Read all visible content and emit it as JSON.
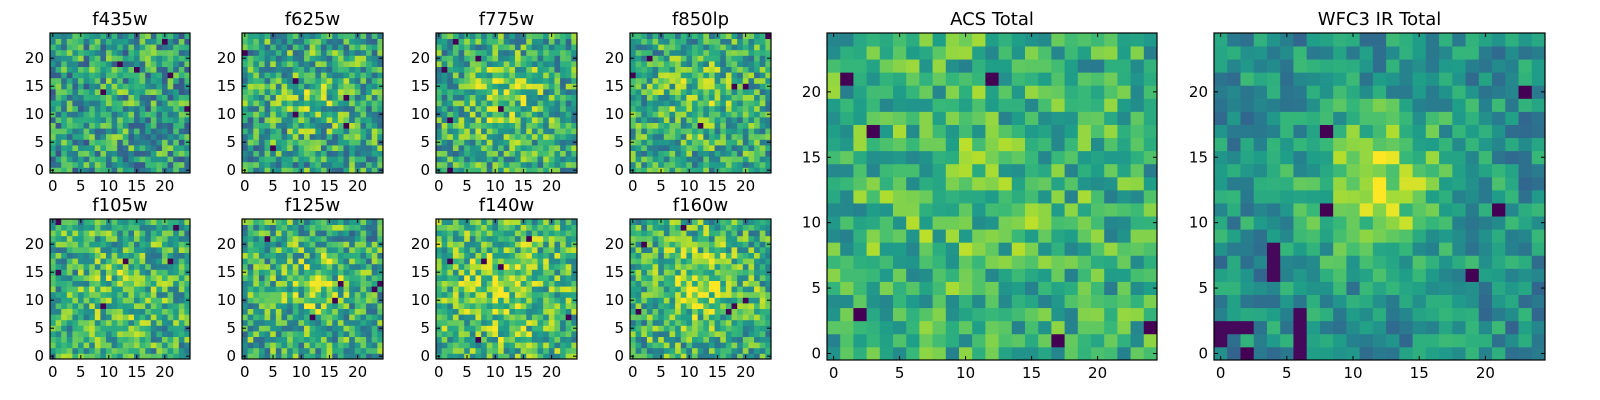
{
  "chart_data": [
    {
      "type": "heatmap",
      "title": "f435w",
      "grid_size": 25,
      "colormap": "viridis",
      "xticks": [
        "0",
        "5",
        "10",
        "15",
        "20"
      ],
      "yticks": [
        "0",
        "5",
        "10",
        "15",
        "20"
      ],
      "xlim": [
        0,
        24
      ],
      "ylim": [
        0,
        24
      ],
      "values": []
    },
    {
      "type": "heatmap",
      "title": "f625w",
      "grid_size": 25,
      "colormap": "viridis",
      "xticks": [
        "0",
        "5",
        "10",
        "15",
        "20"
      ],
      "yticks": [
        "0",
        "5",
        "10",
        "15",
        "20"
      ],
      "xlim": [
        0,
        24
      ],
      "ylim": [
        0,
        24
      ],
      "values": []
    },
    {
      "type": "heatmap",
      "title": "f775w",
      "grid_size": 25,
      "colormap": "viridis",
      "xticks": [
        "0",
        "5",
        "10",
        "15",
        "20"
      ],
      "yticks": [
        "0",
        "5",
        "10",
        "15",
        "20"
      ],
      "xlim": [
        0,
        24
      ],
      "ylim": [
        0,
        24
      ],
      "values": []
    },
    {
      "type": "heatmap",
      "title": "f850lp",
      "grid_size": 25,
      "colormap": "viridis",
      "xticks": [
        "0",
        "5",
        "10",
        "15",
        "20"
      ],
      "yticks": [
        "0",
        "5",
        "10",
        "15",
        "20"
      ],
      "xlim": [
        0,
        24
      ],
      "ylim": [
        0,
        24
      ],
      "values": []
    },
    {
      "type": "heatmap",
      "title": "f105w",
      "grid_size": 25,
      "colormap": "viridis",
      "xticks": [
        "0",
        "5",
        "10",
        "15",
        "20"
      ],
      "yticks": [
        "0",
        "5",
        "10",
        "15",
        "20"
      ],
      "xlim": [
        0,
        24
      ],
      "ylim": [
        0,
        24
      ],
      "values": []
    },
    {
      "type": "heatmap",
      "title": "f125w",
      "grid_size": 25,
      "colormap": "viridis",
      "xticks": [
        "0",
        "5",
        "10",
        "15",
        "20"
      ],
      "yticks": [
        "0",
        "5",
        "10",
        "15",
        "20"
      ],
      "xlim": [
        0,
        24
      ],
      "ylim": [
        0,
        24
      ],
      "values": []
    },
    {
      "type": "heatmap",
      "title": "f140w",
      "grid_size": 25,
      "colormap": "viridis",
      "xticks": [
        "0",
        "5",
        "10",
        "15",
        "20"
      ],
      "yticks": [
        "0",
        "5",
        "10",
        "15",
        "20"
      ],
      "xlim": [
        0,
        24
      ],
      "ylim": [
        0,
        24
      ],
      "values": []
    },
    {
      "type": "heatmap",
      "title": "f160w",
      "grid_size": 25,
      "colormap": "viridis",
      "xticks": [
        "0",
        "5",
        "10",
        "15",
        "20"
      ],
      "yticks": [
        "0",
        "5",
        "10",
        "15",
        "20"
      ],
      "xlim": [
        0,
        24
      ],
      "ylim": [
        0,
        24
      ],
      "values": []
    },
    {
      "type": "heatmap",
      "title": "ACS Total",
      "grid_size": 25,
      "colormap": "viridis",
      "xticks": [
        "0",
        "5",
        "10",
        "15",
        "20"
      ],
      "yticks": [
        "0",
        "5",
        "10",
        "15",
        "20"
      ],
      "xlim": [
        0,
        24
      ],
      "ylim": [
        0,
        24
      ],
      "values": []
    },
    {
      "type": "heatmap",
      "title": "WFC3 IR Total",
      "grid_size": 25,
      "colormap": "viridis",
      "xticks": [
        "0",
        "5",
        "10",
        "15",
        "20"
      ],
      "yticks": [
        "0",
        "5",
        "10",
        "15",
        "20"
      ],
      "xlim": [
        0,
        24
      ],
      "ylim": [
        0,
        24
      ],
      "values": []
    }
  ],
  "colors": {
    "background": "#ffffff",
    "axis": "#000000"
  }
}
